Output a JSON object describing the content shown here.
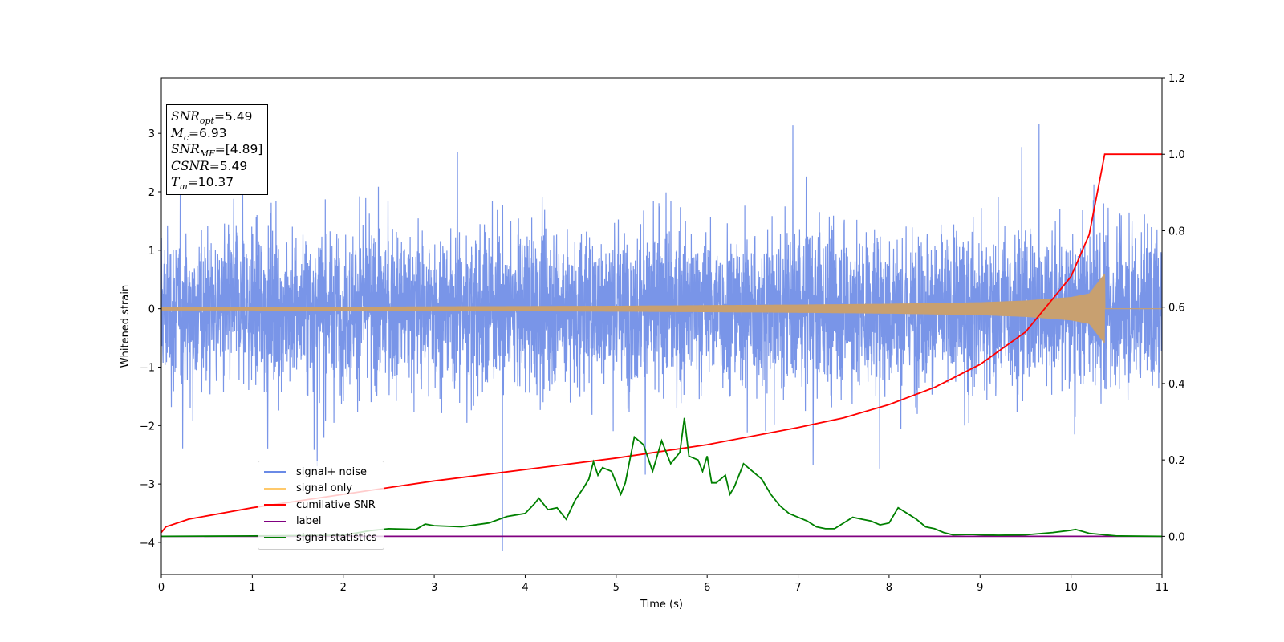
{
  "chart_data": {
    "type": "line",
    "xlabel": "Time (s)",
    "ylabel": "Whitened strain",
    "xlim": [
      0,
      11
    ],
    "ylim_left": [
      -4.55,
      3.95
    ],
    "ylim_right": [
      -0.1,
      1.2
    ],
    "x_ticks": [
      "0",
      "1",
      "2",
      "3",
      "4",
      "5",
      "6",
      "7",
      "8",
      "9",
      "10",
      "11"
    ],
    "y_ticks_left": [
      "−4",
      "−3",
      "−2",
      "−1",
      "0",
      "1",
      "2",
      "3"
    ],
    "y_tick_values_left": [
      -4,
      -3,
      -2,
      -1,
      0,
      1,
      2,
      3
    ],
    "y_ticks_right": [
      "0.0",
      "0.2",
      "0.4",
      "0.6",
      "0.8",
      "1.0",
      "1.2"
    ],
    "y_tick_values_right": [
      0.0,
      0.2,
      0.4,
      0.6,
      0.8,
      1.0,
      1.2
    ],
    "legend_position": "lower-left",
    "series": [
      {
        "name": "signal+ noise",
        "axis": "left",
        "color": "#6a8ae6",
        "description_values": {
          "typical_range": [
            -2.0,
            2.0
          ],
          "peak_max": 3.55,
          "peak_min": -4.15,
          "peak_min_x": 3.75
        }
      },
      {
        "name": "signal only",
        "axis": "left",
        "color": "#ffc96b",
        "envelope": {
          "x": [
            0,
            1,
            2,
            3,
            4,
            5,
            6,
            7,
            8,
            9,
            9.5,
            10,
            10.2,
            10.37,
            10.371,
            11
          ],
          "amp": [
            0.03,
            0.03,
            0.035,
            0.04,
            0.045,
            0.05,
            0.06,
            0.07,
            0.085,
            0.11,
            0.14,
            0.2,
            0.26,
            0.6,
            0.0,
            0.0
          ]
        }
      },
      {
        "name": "cumilative SNR",
        "axis": "right",
        "color": "#ff0000",
        "x": [
          0,
          0.05,
          0.3,
          1,
          2,
          3,
          4,
          5,
          6,
          7,
          7.5,
          8,
          8.5,
          9,
          9.5,
          10,
          10.2,
          10.37,
          11
        ],
        "values": [
          0.01,
          0.025,
          0.045,
          0.075,
          0.11,
          0.145,
          0.175,
          0.205,
          0.24,
          0.285,
          0.31,
          0.345,
          0.39,
          0.45,
          0.535,
          0.68,
          0.79,
          1.0,
          1.0
        ]
      },
      {
        "name": "label",
        "axis": "right",
        "color": "#800080",
        "x": [
          0,
          11
        ],
        "values": [
          0.0,
          0.0
        ]
      },
      {
        "name": "signal statistics",
        "axis": "right",
        "color": "#008000",
        "x": [
          0,
          1,
          2,
          2.3,
          2.5,
          2.8,
          2.9,
          3.0,
          3.3,
          3.6,
          3.8,
          4.0,
          4.1,
          4.15,
          4.25,
          4.35,
          4.45,
          4.55,
          4.65,
          4.7,
          4.75,
          4.8,
          4.85,
          4.95,
          5.05,
          5.1,
          5.2,
          5.3,
          5.4,
          5.5,
          5.6,
          5.7,
          5.75,
          5.8,
          5.9,
          5.95,
          6.0,
          6.05,
          6.1,
          6.2,
          6.25,
          6.3,
          6.4,
          6.45,
          6.6,
          6.7,
          6.8,
          6.9,
          7.0,
          7.1,
          7.2,
          7.3,
          7.4,
          7.6,
          7.7,
          7.8,
          7.9,
          8.0,
          8.1,
          8.2,
          8.3,
          8.4,
          8.5,
          8.6,
          8.7,
          8.9,
          9.0,
          9.2,
          9.5,
          9.8,
          10.0,
          10.05,
          10.2,
          10.5,
          11
        ],
        "values": [
          0.0,
          0.001,
          0.003,
          0.015,
          0.02,
          0.018,
          0.032,
          0.028,
          0.025,
          0.035,
          0.052,
          0.06,
          0.085,
          0.1,
          0.07,
          0.075,
          0.045,
          0.095,
          0.13,
          0.15,
          0.195,
          0.16,
          0.18,
          0.17,
          0.11,
          0.14,
          0.26,
          0.24,
          0.17,
          0.25,
          0.19,
          0.22,
          0.31,
          0.21,
          0.2,
          0.17,
          0.21,
          0.14,
          0.14,
          0.16,
          0.11,
          0.13,
          0.19,
          0.18,
          0.15,
          0.11,
          0.08,
          0.06,
          0.05,
          0.04,
          0.025,
          0.02,
          0.02,
          0.05,
          0.045,
          0.04,
          0.03,
          0.035,
          0.075,
          0.06,
          0.045,
          0.025,
          0.02,
          0.01,
          0.004,
          0.005,
          0.004,
          0.003,
          0.004,
          0.01,
          0.016,
          0.018,
          0.008,
          0.001,
          0.0
        ]
      }
    ],
    "annotation": {
      "lines": [
        {
          "sym": "SNR",
          "sub": "opt",
          "value": "=5.49"
        },
        {
          "sym": "M",
          "sub": "c",
          "value": "=6.93"
        },
        {
          "sym": "SNR",
          "sub": "MF",
          "value": "=[4.89]"
        },
        {
          "sym": "CSNR",
          "sub": "",
          "value": "=5.49"
        },
        {
          "sym": "T",
          "sub": "m",
          "value": "=10.37"
        }
      ]
    }
  }
}
